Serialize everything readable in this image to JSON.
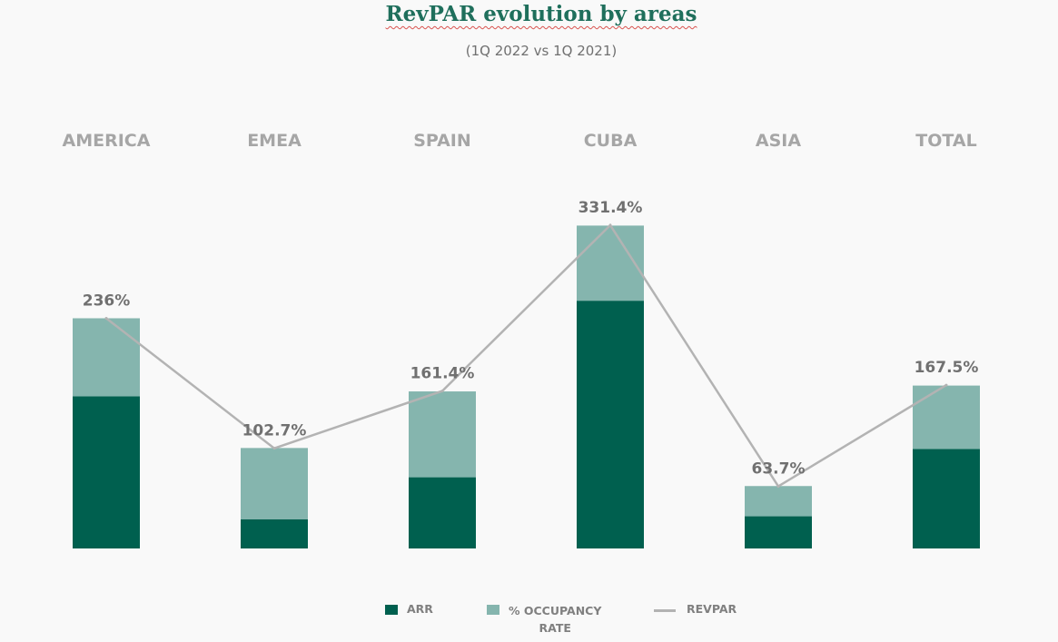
{
  "title": "RevPAR evolution by areas",
  "subtitle": "(1Q 2022 vs 1Q 2021)",
  "colors": {
    "arr": "#00604f",
    "occupancy": "#85b5ae",
    "revpar": "#b3b3b3",
    "category_label": "#a6a6a6",
    "value_label": "#707070"
  },
  "legend": {
    "arr": "ARR",
    "occupancy_line1": "% OCCUPANCY",
    "occupancy_line2": "RATE",
    "revpar": "REVPAR"
  },
  "chart_data": {
    "type": "bar",
    "stacked": true,
    "categories": [
      "AMERICA",
      "EMEA",
      "SPAIN",
      "CUBA",
      "ASIA",
      "TOTAL"
    ],
    "series": [
      {
        "name": "ARR",
        "type": "bar",
        "values": [
          156,
          30,
          73,
          254,
          33,
          102
        ]
      },
      {
        "name": "% OCCUPANCY RATE",
        "type": "bar",
        "values": [
          80,
          73,
          88,
          77,
          31,
          65
        ]
      },
      {
        "name": "REVPAR",
        "type": "line",
        "values": [
          236,
          102.7,
          161.4,
          331.4,
          63.7,
          167.5
        ]
      }
    ],
    "data_labels": [
      "236%",
      "102.7%",
      "161.4%",
      "331.4%",
      "63.7%",
      "167.5%"
    ],
    "ylim": [
      0,
      331.4
    ],
    "grid": false,
    "legend_position": "bottom"
  }
}
